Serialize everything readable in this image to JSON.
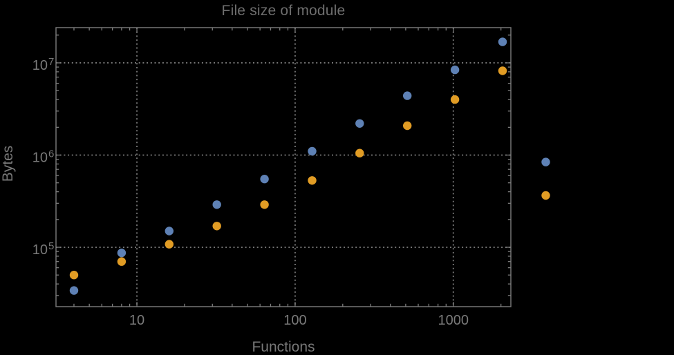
{
  "window": {
    "background": "#000000"
  },
  "style": {
    "title_color": "#6e6e6e",
    "axis_label_color": "#787878",
    "tick_label_color": "#7a7a7a",
    "frame_color": "#7e7e7e",
    "grid_color": "#757575",
    "point_radius": 6.2
  },
  "chart_data": {
    "type": "scatter",
    "title": "File size of module",
    "xlabel": "Functions",
    "ylabel": "Bytes",
    "x_scale": "log",
    "y_scale": "log",
    "legend": "none",
    "grid": "dotted lines at decades, on",
    "x": [
      4,
      8,
      16,
      32,
      64,
      128,
      256,
      512,
      1024,
      2048,
      3840
    ],
    "series": [
      {
        "name": "series-1-blue",
        "color": "#5E81B5",
        "values": [
          34000,
          87000,
          150000,
          290000,
          550000,
          1100000,
          2200000,
          4400000,
          8400000,
          16900000,
          840000
        ]
      },
      {
        "name": "series-2-orange",
        "color": "#E19C24",
        "values": [
          50000,
          70000,
          108000,
          170000,
          290000,
          530000,
          1050000,
          2080000,
          4000000,
          8200000,
          365000
        ]
      }
    ],
    "x_axis": {
      "min": 3.08,
      "max": 2310,
      "major_ticks": [
        10,
        100,
        1000
      ],
      "tick_labels": [
        "10",
        "100",
        "1000"
      ]
    },
    "y_axis": {
      "min": 22700,
      "max": 24100000,
      "major_ticks": [
        100000,
        1000000,
        10000000
      ],
      "tick_labels": [
        {
          "base": "10",
          "exp": "5"
        },
        {
          "base": "10",
          "exp": "6"
        },
        {
          "base": "10",
          "exp": "7"
        }
      ]
    },
    "clipping_note": "last x pair (3840) rendered beyond right frame edge"
  }
}
